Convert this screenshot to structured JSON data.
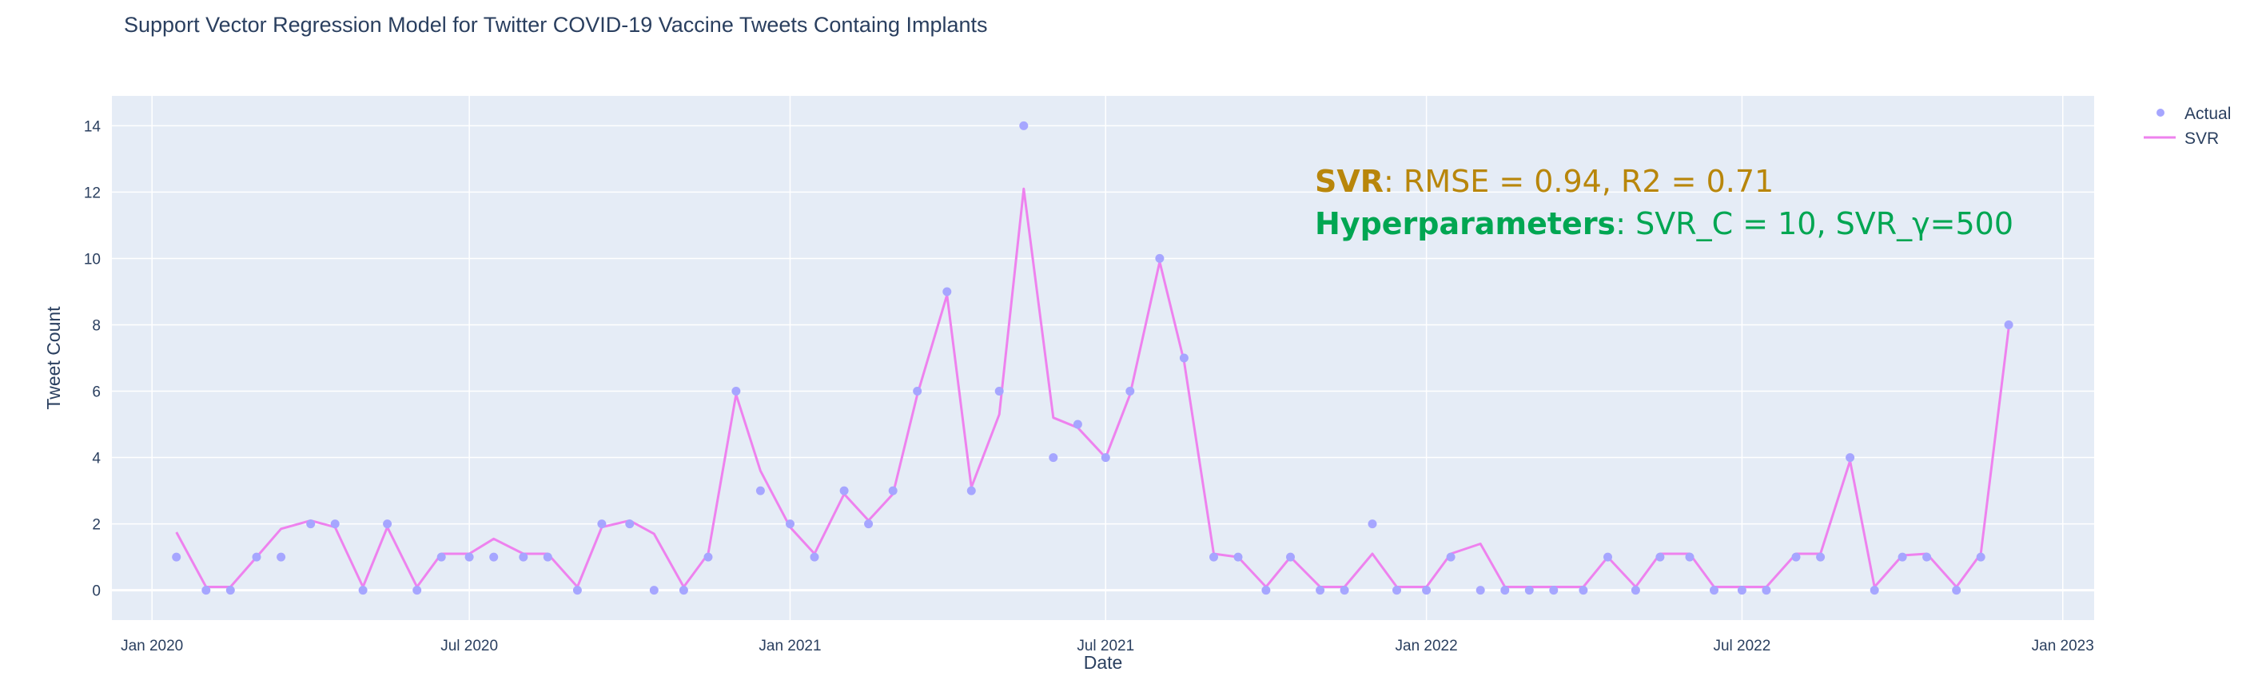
{
  "chart_data": {
    "type": "scatter",
    "title": "Support Vector Regression Model for Twitter COVID-19 Vaccine Tweets Containg Implants",
    "xlabel": "Date",
    "ylabel": "Tweet Count",
    "ylim": [
      -0.9,
      14.9
    ],
    "xlim": [
      "2019-12-09",
      "2023-01-19"
    ],
    "grid": true,
    "legend_position": "top-right",
    "x_ticks": [
      {
        "date": "2020-01-01",
        "label": "Jan 2020"
      },
      {
        "date": "2020-07-01",
        "label": "Jul 2020"
      },
      {
        "date": "2021-01-01",
        "label": "Jan 2021"
      },
      {
        "date": "2021-07-01",
        "label": "Jul 2021"
      },
      {
        "date": "2022-01-01",
        "label": "Jan 2022"
      },
      {
        "date": "2022-07-01",
        "label": "Jul 2022"
      },
      {
        "date": "2023-01-01",
        "label": "Jan 2023"
      }
    ],
    "y_ticks": [
      0,
      2,
      4,
      6,
      8,
      10,
      12,
      14
    ],
    "series": [
      {
        "name": "Actual",
        "mode": "markers",
        "color": "#a6a6ff",
        "points": [
          {
            "x": "2020-01-15",
            "y": 1
          },
          {
            "x": "2020-02-01",
            "y": 0
          },
          {
            "x": "2020-02-15",
            "y": 0
          },
          {
            "x": "2020-03-01",
            "y": 1
          },
          {
            "x": "2020-03-15",
            "y": 1
          },
          {
            "x": "2020-04-01",
            "y": 2
          },
          {
            "x": "2020-04-15",
            "y": 2
          },
          {
            "x": "2020-05-01",
            "y": 0
          },
          {
            "x": "2020-05-15",
            "y": 2
          },
          {
            "x": "2020-06-01",
            "y": 0
          },
          {
            "x": "2020-06-15",
            "y": 1
          },
          {
            "x": "2020-07-01",
            "y": 1
          },
          {
            "x": "2020-07-15",
            "y": 1
          },
          {
            "x": "2020-08-01",
            "y": 1
          },
          {
            "x": "2020-08-15",
            "y": 1
          },
          {
            "x": "2020-09-01",
            "y": 0
          },
          {
            "x": "2020-09-15",
            "y": 2
          },
          {
            "x": "2020-10-01",
            "y": 2
          },
          {
            "x": "2020-10-15",
            "y": 0
          },
          {
            "x": "2020-11-01",
            "y": 0
          },
          {
            "x": "2020-11-15",
            "y": 1
          },
          {
            "x": "2020-12-01",
            "y": 6
          },
          {
            "x": "2020-12-15",
            "y": 3
          },
          {
            "x": "2021-01-01",
            "y": 2
          },
          {
            "x": "2021-01-15",
            "y": 1
          },
          {
            "x": "2021-02-01",
            "y": 3
          },
          {
            "x": "2021-02-15",
            "y": 2
          },
          {
            "x": "2021-03-01",
            "y": 3
          },
          {
            "x": "2021-03-15",
            "y": 6
          },
          {
            "x": "2021-04-01",
            "y": 9
          },
          {
            "x": "2021-04-15",
            "y": 3
          },
          {
            "x": "2021-05-01",
            "y": 6
          },
          {
            "x": "2021-05-15",
            "y": 14
          },
          {
            "x": "2021-06-01",
            "y": 4
          },
          {
            "x": "2021-06-15",
            "y": 5
          },
          {
            "x": "2021-07-01",
            "y": 4
          },
          {
            "x": "2021-07-15",
            "y": 6
          },
          {
            "x": "2021-08-01",
            "y": 10
          },
          {
            "x": "2021-08-15",
            "y": 7
          },
          {
            "x": "2021-09-01",
            "y": 1
          },
          {
            "x": "2021-09-15",
            "y": 1
          },
          {
            "x": "2021-10-01",
            "y": 0
          },
          {
            "x": "2021-10-15",
            "y": 1
          },
          {
            "x": "2021-11-01",
            "y": 0
          },
          {
            "x": "2021-11-15",
            "y": 0
          },
          {
            "x": "2021-12-01",
            "y": 2
          },
          {
            "x": "2021-12-15",
            "y": 0
          },
          {
            "x": "2022-01-01",
            "y": 0
          },
          {
            "x": "2022-01-15",
            "y": 1
          },
          {
            "x": "2022-02-01",
            "y": 0
          },
          {
            "x": "2022-02-15",
            "y": 0
          },
          {
            "x": "2022-03-01",
            "y": 0
          },
          {
            "x": "2022-03-15",
            "y": 0
          },
          {
            "x": "2022-04-01",
            "y": 0
          },
          {
            "x": "2022-04-15",
            "y": 1
          },
          {
            "x": "2022-05-01",
            "y": 0
          },
          {
            "x": "2022-05-15",
            "y": 1
          },
          {
            "x": "2022-06-01",
            "y": 1
          },
          {
            "x": "2022-06-15",
            "y": 0
          },
          {
            "x": "2022-07-01",
            "y": 0
          },
          {
            "x": "2022-07-15",
            "y": 0
          },
          {
            "x": "2022-08-01",
            "y": 1
          },
          {
            "x": "2022-08-15",
            "y": 1
          },
          {
            "x": "2022-09-01",
            "y": 4
          },
          {
            "x": "2022-09-15",
            "y": 0
          },
          {
            "x": "2022-10-01",
            "y": 1
          },
          {
            "x": "2022-10-15",
            "y": 1
          },
          {
            "x": "2022-11-01",
            "y": 0
          },
          {
            "x": "2022-11-15",
            "y": 1
          },
          {
            "x": "2022-12-01",
            "y": 8
          }
        ]
      },
      {
        "name": "SVR",
        "mode": "lines",
        "color": "#ee82ee",
        "points": [
          {
            "x": "2020-01-15",
            "y": 1.75
          },
          {
            "x": "2020-02-01",
            "y": 0.1
          },
          {
            "x": "2020-02-15",
            "y": 0.1
          },
          {
            "x": "2020-03-01",
            "y": 1.0
          },
          {
            "x": "2020-03-15",
            "y": 1.85
          },
          {
            "x": "2020-04-01",
            "y": 2.1
          },
          {
            "x": "2020-04-15",
            "y": 1.9
          },
          {
            "x": "2020-05-01",
            "y": 0.1
          },
          {
            "x": "2020-05-15",
            "y": 1.9
          },
          {
            "x": "2020-06-01",
            "y": 0.1
          },
          {
            "x": "2020-06-15",
            "y": 1.1
          },
          {
            "x": "2020-07-01",
            "y": 1.1
          },
          {
            "x": "2020-07-15",
            "y": 1.55
          },
          {
            "x": "2020-08-01",
            "y": 1.1
          },
          {
            "x": "2020-08-15",
            "y": 1.1
          },
          {
            "x": "2020-09-01",
            "y": 0.1
          },
          {
            "x": "2020-09-15",
            "y": 1.9
          },
          {
            "x": "2020-10-01",
            "y": 2.1
          },
          {
            "x": "2020-10-15",
            "y": 1.7
          },
          {
            "x": "2020-11-01",
            "y": 0.1
          },
          {
            "x": "2020-11-15",
            "y": 1.1
          },
          {
            "x": "2020-12-01",
            "y": 5.9
          },
          {
            "x": "2020-12-15",
            "y": 3.6
          },
          {
            "x": "2021-01-01",
            "y": 1.9
          },
          {
            "x": "2021-01-15",
            "y": 1.1
          },
          {
            "x": "2021-02-01",
            "y": 2.9
          },
          {
            "x": "2021-02-15",
            "y": 2.1
          },
          {
            "x": "2021-03-01",
            "y": 2.9
          },
          {
            "x": "2021-03-15",
            "y": 5.9
          },
          {
            "x": "2021-04-01",
            "y": 8.9
          },
          {
            "x": "2021-04-15",
            "y": 3.1
          },
          {
            "x": "2021-05-01",
            "y": 5.3
          },
          {
            "x": "2021-05-15",
            "y": 12.1
          },
          {
            "x": "2021-06-01",
            "y": 5.2
          },
          {
            "x": "2021-06-15",
            "y": 4.9
          },
          {
            "x": "2021-07-01",
            "y": 4.0
          },
          {
            "x": "2021-07-15",
            "y": 5.9
          },
          {
            "x": "2021-08-01",
            "y": 9.9
          },
          {
            "x": "2021-08-15",
            "y": 6.9
          },
          {
            "x": "2021-09-01",
            "y": 1.1
          },
          {
            "x": "2021-09-15",
            "y": 1.0
          },
          {
            "x": "2021-10-01",
            "y": 0.1
          },
          {
            "x": "2021-10-15",
            "y": 1.0
          },
          {
            "x": "2021-11-01",
            "y": 0.1
          },
          {
            "x": "2021-11-15",
            "y": 0.1
          },
          {
            "x": "2021-12-01",
            "y": 1.1
          },
          {
            "x": "2021-12-15",
            "y": 0.1
          },
          {
            "x": "2022-01-01",
            "y": 0.1
          },
          {
            "x": "2022-01-15",
            "y": 1.1
          },
          {
            "x": "2022-02-01",
            "y": 1.4
          },
          {
            "x": "2022-02-15",
            "y": 0.1
          },
          {
            "x": "2022-03-01",
            "y": 0.1
          },
          {
            "x": "2022-03-15",
            "y": 0.1
          },
          {
            "x": "2022-04-01",
            "y": 0.1
          },
          {
            "x": "2022-04-15",
            "y": 1.0
          },
          {
            "x": "2022-05-01",
            "y": 0.1
          },
          {
            "x": "2022-05-15",
            "y": 1.1
          },
          {
            "x": "2022-06-01",
            "y": 1.1
          },
          {
            "x": "2022-06-15",
            "y": 0.1
          },
          {
            "x": "2022-07-01",
            "y": 0.1
          },
          {
            "x": "2022-07-15",
            "y": 0.1
          },
          {
            "x": "2022-08-01",
            "y": 1.1
          },
          {
            "x": "2022-08-15",
            "y": 1.1
          },
          {
            "x": "2022-09-01",
            "y": 3.9
          },
          {
            "x": "2022-09-15",
            "y": 0.1
          },
          {
            "x": "2022-10-01",
            "y": 1.05
          },
          {
            "x": "2022-10-15",
            "y": 1.1
          },
          {
            "x": "2022-11-01",
            "y": 0.1
          },
          {
            "x": "2022-11-15",
            "y": 1.1
          },
          {
            "x": "2022-12-01",
            "y": 7.9
          }
        ]
      }
    ],
    "annotations": [
      {
        "bold": "SVR",
        "rest": ": RMSE = 0.94, R2 = 0.71",
        "color": "#b8860b"
      },
      {
        "bold": "Hyperparameters",
        "rest": ": SVR_C = 10, SVR_γ=500",
        "color": "#00a652"
      }
    ]
  },
  "colors": {
    "plot_bg": "#e5ecf6",
    "grid": "#ffffff",
    "text": "#2a3f5f",
    "tick_text": "#2a3f5f"
  }
}
